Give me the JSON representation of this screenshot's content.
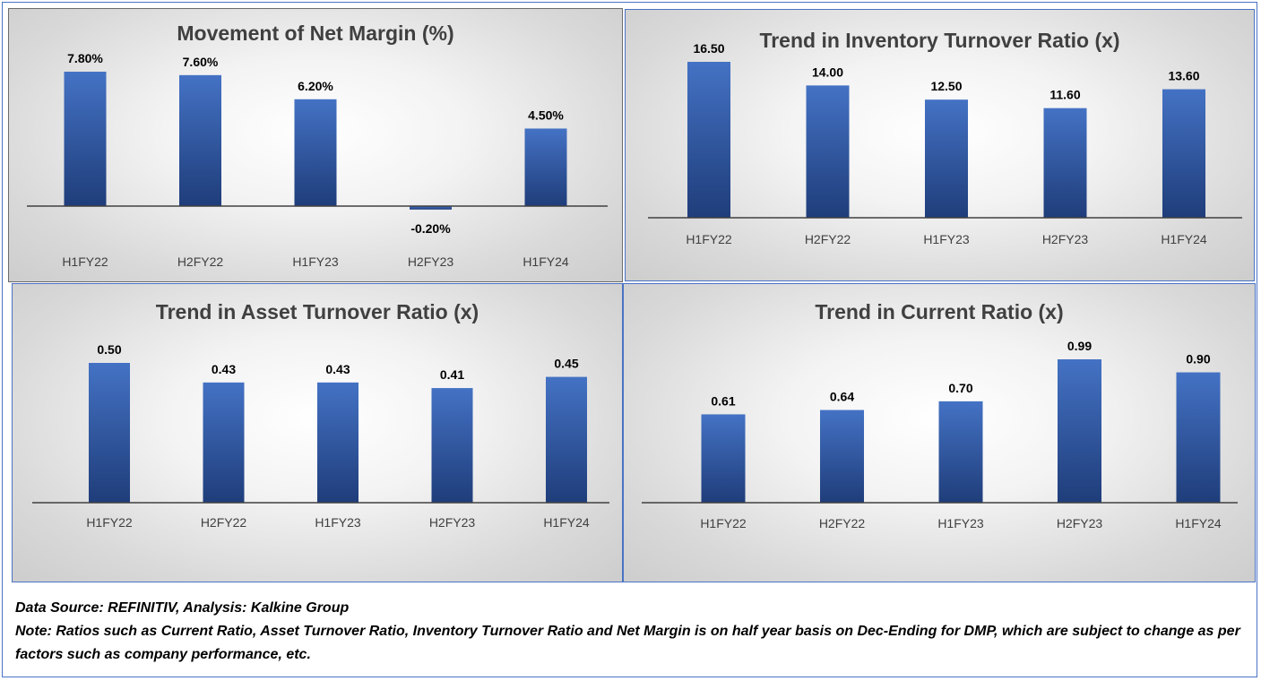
{
  "colors": {
    "bar_top": "#4472c4",
    "bar_bottom": "#1f3d7a",
    "axis": "#404040",
    "label": "#000000",
    "tick": "#404040",
    "border": "#4a72c4"
  },
  "chart_data": [
    {
      "type": "bar",
      "title": "Movement of Net Margin (%)",
      "categories": [
        "H1FY22",
        "H2FY22",
        "H1FY23",
        "H2FY23",
        "H1FY24"
      ],
      "values": [
        7.8,
        7.6,
        6.2,
        -0.2,
        4.5
      ],
      "data_labels": [
        "7.80%",
        "7.60%",
        "6.20%",
        "-0.20%",
        "4.50%"
      ],
      "ylim": [
        -1.5,
        8.5
      ],
      "grid": false
    },
    {
      "type": "bar",
      "title": "Trend in Inventory Turnover Ratio (x)",
      "categories": [
        "H1FY22",
        "H2FY22",
        "H1FY23",
        "H2FY23",
        "H1FY24"
      ],
      "values": [
        16.5,
        14.0,
        12.5,
        11.6,
        13.6
      ],
      "data_labels": [
        "16.50",
        "14.00",
        "12.50",
        "11.60",
        "13.60"
      ],
      "ylim": [
        0,
        18
      ],
      "grid": false
    },
    {
      "type": "bar",
      "title": "Trend in Asset Turnover Ratio (x)",
      "categories": [
        "H1FY22",
        "H2FY22",
        "H1FY23",
        "H2FY23",
        "H1FY24"
      ],
      "values": [
        0.5,
        0.43,
        0.43,
        0.41,
        0.45
      ],
      "data_labels": [
        "0.50",
        "0.43",
        "0.43",
        "0.41",
        "0.45"
      ],
      "ylim": [
        0,
        0.55
      ],
      "grid": false
    },
    {
      "type": "bar",
      "title": "Trend in Current Ratio (x)",
      "categories": [
        "H1FY22",
        "H2FY22",
        "H1FY23",
        "H2FY23",
        "H1FY24"
      ],
      "values": [
        0.61,
        0.64,
        0.7,
        0.99,
        0.9
      ],
      "data_labels": [
        "0.61",
        "0.64",
        "0.70",
        "0.99",
        "0.90"
      ],
      "ylim": [
        0,
        1.1
      ],
      "grid": false
    }
  ],
  "footer": {
    "source": "Data Source: REFINITIV, Analysis: Kalkine Group",
    "note": "Note: Ratios such as Current Ratio, Asset Turnover Ratio, Inventory Turnover Ratio and Net Margin is on half year basis on Dec-Ending for DMP, which are subject to change as per factors such as company performance, etc."
  }
}
